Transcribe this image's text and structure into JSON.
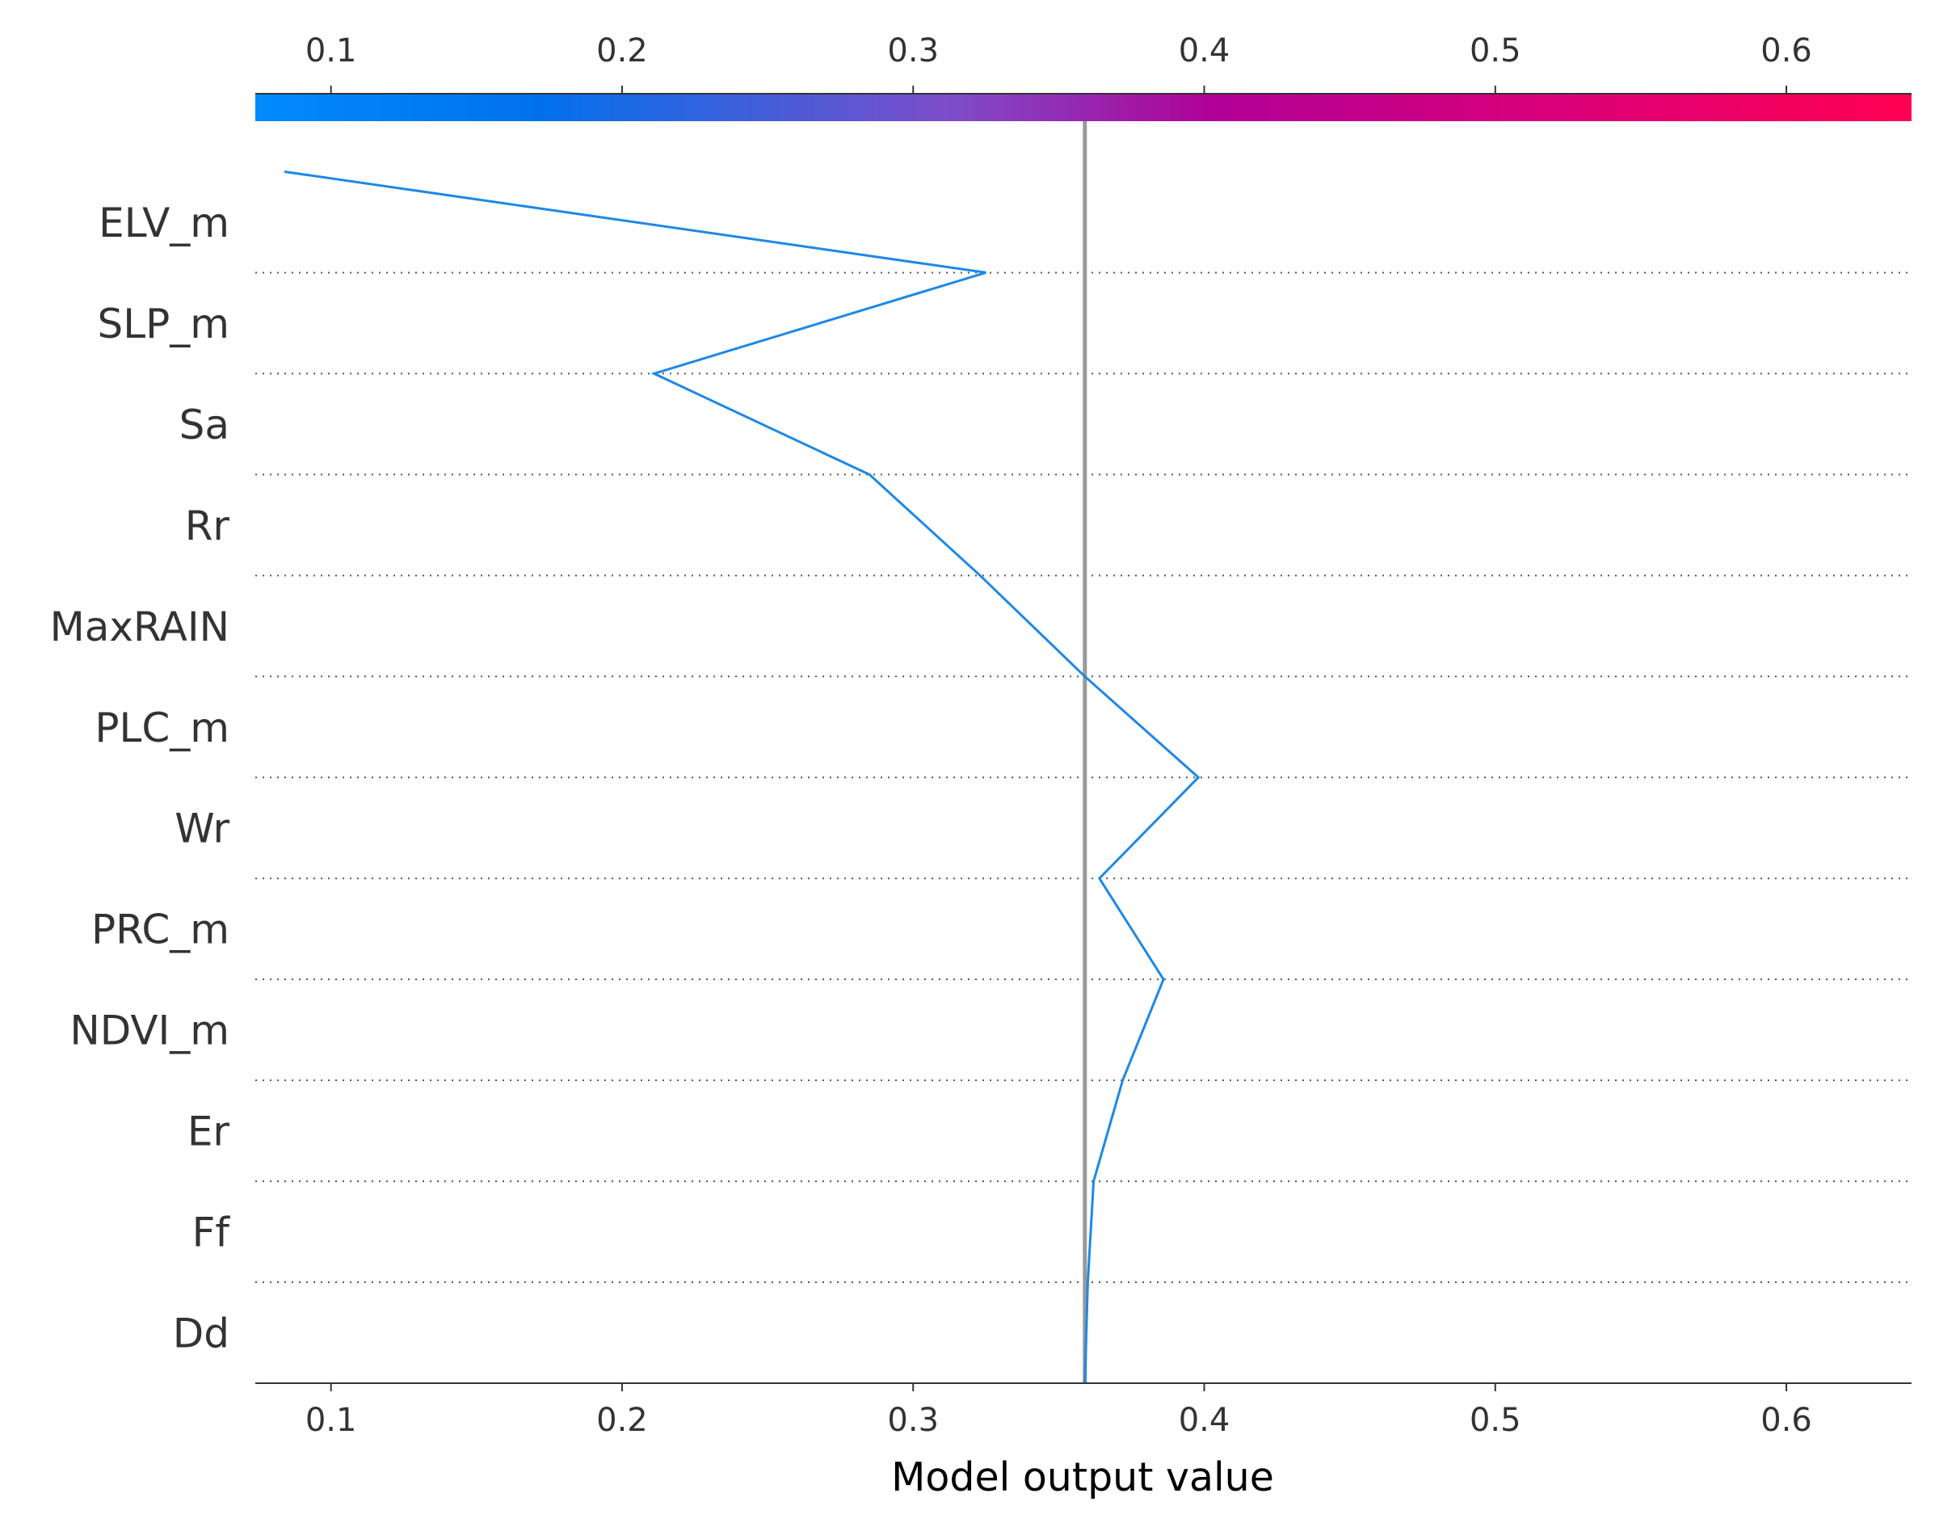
{
  "chart_data": {
    "type": "line",
    "subtype": "shap-decision-plot",
    "xlabel": "Model output value",
    "ylabel": "",
    "title": "",
    "xlim": [
      0.074,
      0.643
    ],
    "xticks": [
      0.1,
      0.2,
      0.3,
      0.4,
      0.5,
      0.6
    ],
    "x_tick_labels": [
      "0.1",
      "0.2",
      "0.3",
      "0.4",
      "0.5",
      "0.6"
    ],
    "base_value": 0.359,
    "features": [
      "ELV_m",
      "SLP_m",
      "Sa",
      "Rr",
      "MaxRAIN",
      "PLC_m",
      "Wr",
      "PRC_m",
      "NDVI_m",
      "Er",
      "Ff",
      "Dd"
    ],
    "series": [
      {
        "values": [
          0.084,
          0.325,
          0.211,
          0.285,
          0.323,
          0.359,
          0.398,
          0.364,
          0.386,
          0.372,
          0.362,
          0.36,
          0.359
        ]
      }
    ],
    "colorbar": {
      "position": "top",
      "colors": [
        "#008bfb",
        "#0071ed",
        "#7d4dc9",
        "#b10096",
        "#ff0052"
      ],
      "tick_labels": [
        "0.1",
        "0.2",
        "0.3",
        "0.4",
        "0.5",
        "0.6"
      ]
    },
    "line_color": "#1e88e5",
    "base_line_color": "#999999",
    "grid": "dotted horizontal"
  }
}
